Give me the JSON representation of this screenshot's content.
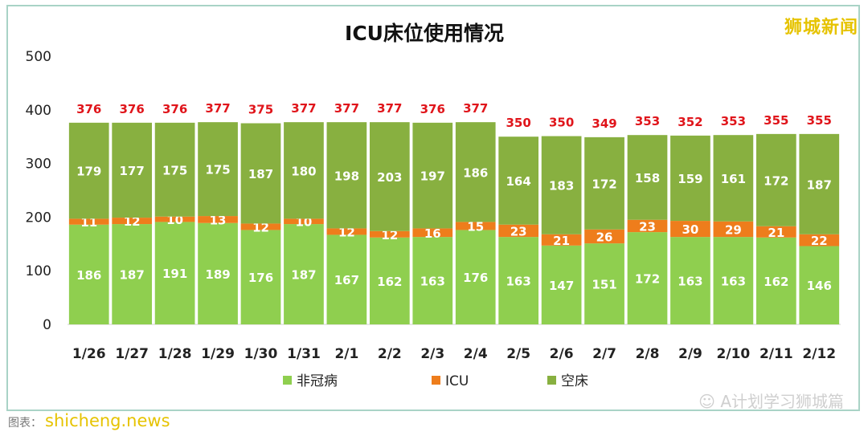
{
  "brand": "狮城新闻",
  "watermark": "A计划学习狮城篇",
  "footer": {
    "source": "图表：",
    "site": "shicheng.news"
  },
  "colors": {
    "non_covid": "#8fcf4f",
    "icu": "#ee7d1c",
    "empty": "#88b040",
    "total_label": "#e0151b"
  },
  "chart_data": {
    "type": "bar",
    "stacked": true,
    "title": "ICU床位使用情况",
    "xlabel": "",
    "ylabel": "",
    "ylim": [
      0,
      500
    ],
    "yticks": [
      0,
      100,
      200,
      300,
      400,
      500
    ],
    "grid": false,
    "legend_position": "bottom",
    "categories": [
      "1/26",
      "1/27",
      "1/28",
      "1/29",
      "1/30",
      "1/31",
      "2/1",
      "2/2",
      "2/3",
      "2/4",
      "2/5",
      "2/6",
      "2/7",
      "2/8",
      "2/9",
      "2/10",
      "2/11",
      "2/12"
    ],
    "series": [
      {
        "name": "非冠病",
        "values": [
          186,
          187,
          191,
          189,
          176,
          187,
          167,
          162,
          163,
          176,
          163,
          147,
          151,
          172,
          163,
          163,
          162,
          146
        ]
      },
      {
        "name": "ICU",
        "values": [
          11,
          12,
          10,
          13,
          12,
          10,
          12,
          12,
          16,
          15,
          23,
          21,
          26,
          23,
          30,
          29,
          21,
          22
        ]
      },
      {
        "name": "空床",
        "values": [
          179,
          177,
          175,
          175,
          187,
          180,
          198,
          203,
          197,
          186,
          164,
          183,
          172,
          158,
          159,
          161,
          172,
          187
        ]
      }
    ],
    "totals": [
      376,
      376,
      376,
      377,
      375,
      377,
      377,
      377,
      376,
      377,
      350,
      350,
      349,
      353,
      352,
      353,
      355,
      355
    ]
  }
}
